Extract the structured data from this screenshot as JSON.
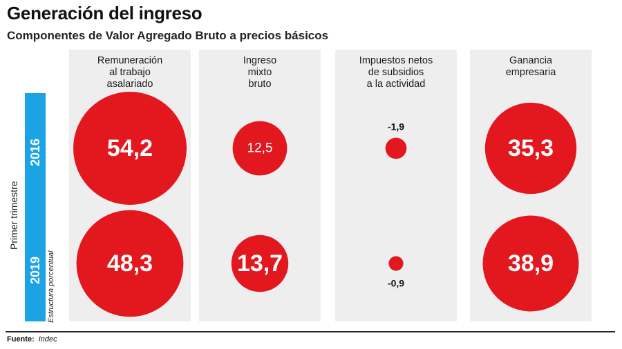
{
  "title": "Generación del ingreso",
  "subtitle": "Componentes de Valor Agregado Bruto a precios básicos",
  "colors": {
    "bubble": "#e3181f",
    "panel": "#eeeeee",
    "year_bar": "#1ca3e6",
    "text_on_bubble": "#ffffff"
  },
  "side": {
    "period": "Primer trimestre",
    "note": "Estructura porcentual"
  },
  "footer": {
    "label": "Fuente:",
    "source": "Indec"
  },
  "chart_data": {
    "type": "bubble-grid",
    "title": "Generación del ingreso",
    "subtitle": "Componentes de Valor Agregado Bruto a precios básicos",
    "unit_note": "Estructura porcentual",
    "categories": [
      "Remuneración\nal trabajo\nasalariado",
      "Ingreso\nmixto\nbruto",
      "Impuestos netos\nde subsidios\na la actividad",
      "Ganancia\nempresaria"
    ],
    "series": [
      {
        "name": "2016",
        "values": [
          54.2,
          12.5,
          -1.9,
          35.3
        ],
        "labels": [
          "54,2",
          "12,5",
          "-1,9",
          "35,3"
        ]
      },
      {
        "name": "2019",
        "values": [
          48.3,
          13.7,
          -0.9,
          38.9
        ],
        "labels": [
          "48,3",
          "13,7",
          "-0,9",
          "38,9"
        ]
      }
    ]
  }
}
